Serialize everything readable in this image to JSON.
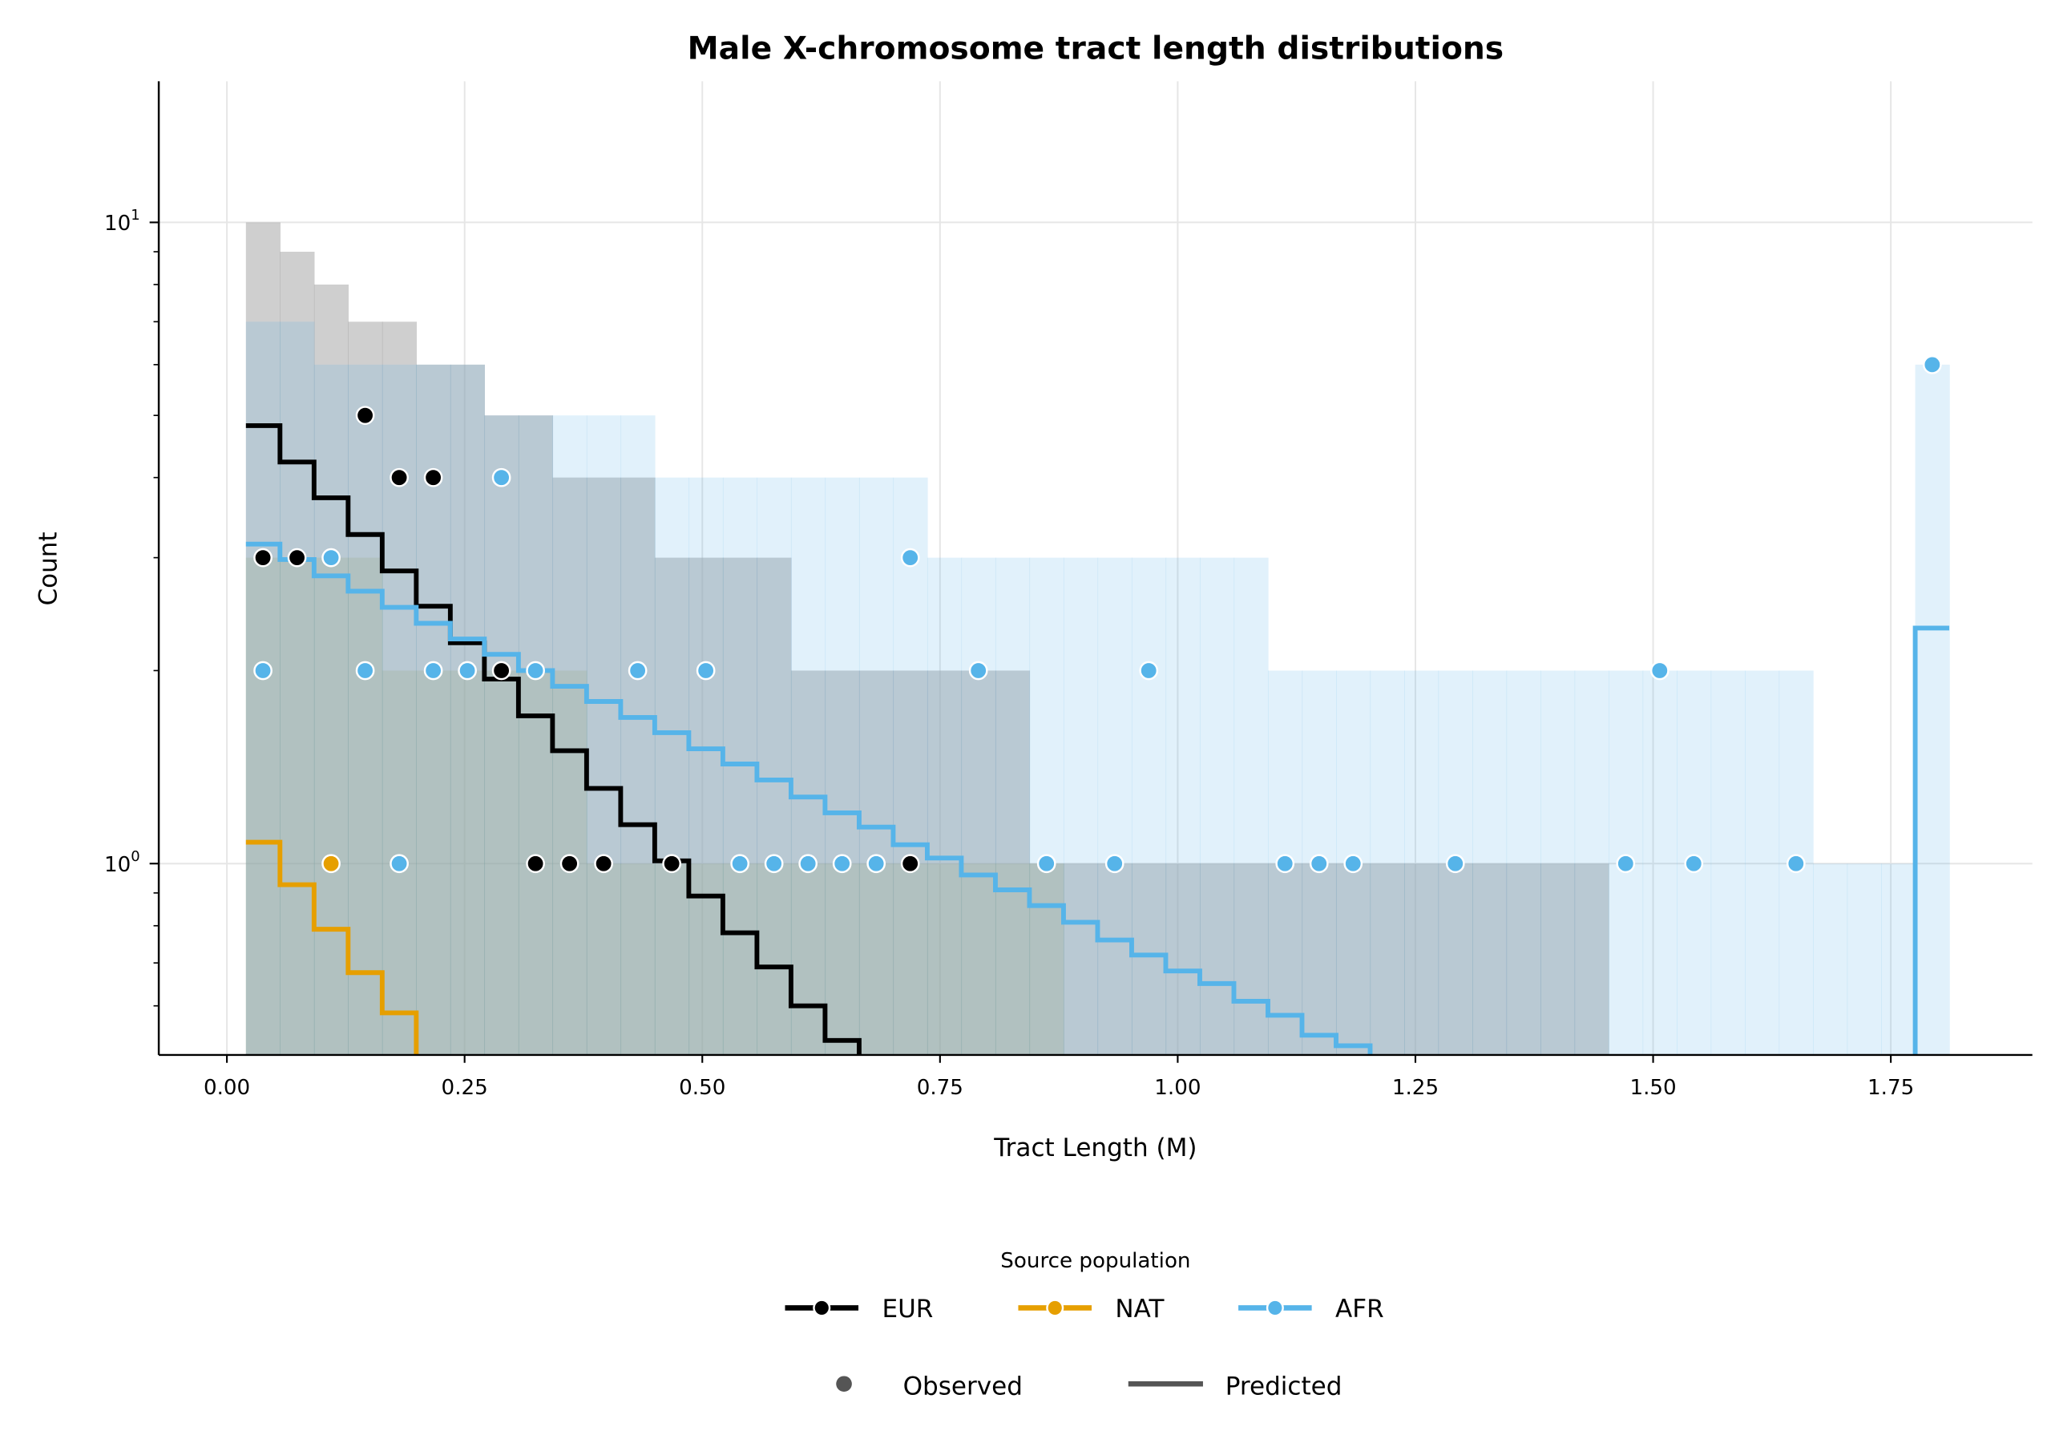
{
  "chart_data": {
    "type": "histogram-step-scatter",
    "title": "Male X-chromosome tract length distributions",
    "xlabel": "Tract Length (M)",
    "ylabel": "Count",
    "xlim": [
      -0.07,
      1.92
    ],
    "ylim": [
      0.503,
      16.6
    ],
    "yscale": "log",
    "grid": true,
    "xticks": [
      "0.00",
      "0.25",
      "0.50",
      "0.75",
      "1.00",
      "1.25",
      "1.50",
      "1.75"
    ],
    "xtick_values": [
      0,
      0.25,
      0.5,
      0.75,
      1.0,
      1.25,
      1.5,
      1.75
    ],
    "yticks": [
      {
        "base": "10",
        "exp": "0",
        "value": 1
      },
      {
        "base": "10",
        "exp": "1",
        "value": 10
      }
    ],
    "bins": {
      "start": 0.02,
      "width": 0.03583,
      "count": 50
    },
    "series": [
      {
        "name": "EUR",
        "color": "#000000",
        "hist_color": "#a0a0a0",
        "hist_opacity": 0.5,
        "histogram": [
          10,
          9,
          8,
          7,
          7,
          6,
          6,
          5,
          5,
          4,
          4,
          4,
          3,
          3,
          3,
          3,
          2,
          2,
          2,
          2,
          2,
          2,
          2,
          1,
          1,
          1,
          1,
          1,
          1,
          1,
          1,
          1,
          1,
          1,
          1,
          1,
          1,
          1,
          1,
          1,
          0,
          0,
          0,
          0,
          0,
          0,
          0,
          0,
          0,
          0
        ],
        "predicted": [
          4.82,
          4.23,
          3.72,
          3.26,
          2.86,
          2.52,
          2.21,
          1.94,
          1.7,
          1.5,
          1.31,
          1.15,
          1.01,
          0.89,
          0.78,
          0.69,
          0.6,
          0.53,
          0.47
        ],
        "observed": [
          [
            0,
            3
          ],
          [
            1,
            3
          ],
          [
            3,
            5
          ],
          [
            4,
            4
          ],
          [
            5,
            4
          ],
          [
            7,
            2
          ],
          [
            8,
            1
          ],
          [
            9,
            1
          ],
          [
            10,
            1
          ],
          [
            12,
            1
          ],
          [
            19,
            1
          ]
        ]
      },
      {
        "name": "NAT",
        "color": "#E69F00",
        "hist_color": "#9a9a50",
        "hist_opacity": 0.18,
        "histogram": [
          3,
          3,
          3,
          3,
          2,
          2,
          2,
          2,
          2,
          2,
          1,
          1,
          1,
          1,
          1,
          1,
          1,
          1,
          1,
          1,
          1,
          1,
          1,
          1,
          0,
          0,
          0,
          0,
          0,
          0,
          0,
          0,
          0,
          0,
          0,
          0,
          0,
          0,
          0,
          0,
          0,
          0,
          0,
          0,
          0,
          0,
          0,
          0,
          0,
          0
        ],
        "predicted": [
          1.08,
          0.927,
          0.79,
          0.676,
          0.585,
          0.48
        ],
        "observed": [
          [
            2,
            1
          ]
        ]
      },
      {
        "name": "AFR",
        "color": "#56B4E9",
        "hist_color": "#56B4E9",
        "hist_opacity": 0.18,
        "histogram": [
          7,
          7,
          6,
          6,
          6,
          6,
          6,
          5,
          5,
          5,
          5,
          5,
          4,
          4,
          4,
          4,
          4,
          4,
          4,
          4,
          3,
          3,
          3,
          3,
          3,
          3,
          3,
          3,
          3,
          3,
          2,
          2,
          2,
          2,
          2,
          2,
          2,
          2,
          2,
          2,
          2,
          2,
          2,
          2,
          2,
          2,
          1,
          1,
          1,
          6
        ],
        "predicted": [
          3.15,
          2.98,
          2.81,
          2.66,
          2.51,
          2.37,
          2.24,
          2.12,
          2.0,
          1.89,
          1.79,
          1.69,
          1.6,
          1.51,
          1.43,
          1.35,
          1.27,
          1.2,
          1.14,
          1.07,
          1.02,
          0.96,
          0.91,
          0.86,
          0.81,
          0.76,
          0.72,
          0.68,
          0.65,
          0.61,
          0.58,
          0.54,
          0.52,
          0.45,
          0.4,
          0.4,
          0.4,
          0.4,
          0.4,
          0.4,
          0.4,
          0.4,
          0.4,
          0.4,
          0.4,
          0.4,
          0.4,
          0.4,
          0.4,
          2.33
        ],
        "observed": [
          [
            0,
            2
          ],
          [
            2,
            3
          ],
          [
            3,
            2
          ],
          [
            4,
            1
          ],
          [
            5,
            2
          ],
          [
            6,
            2
          ],
          [
            7,
            4
          ],
          [
            8,
            2
          ],
          [
            11,
            2
          ],
          [
            13,
            2
          ],
          [
            14,
            1
          ],
          [
            15,
            1
          ],
          [
            16,
            1
          ],
          [
            17,
            1
          ],
          [
            18,
            1
          ],
          [
            19,
            3
          ],
          [
            21,
            2
          ],
          [
            23,
            1
          ],
          [
            25,
            1
          ],
          [
            26,
            2
          ],
          [
            30,
            1
          ],
          [
            31,
            1
          ],
          [
            32,
            1
          ],
          [
            35,
            1
          ],
          [
            40,
            1
          ],
          [
            41,
            2
          ],
          [
            42,
            1
          ],
          [
            45,
            1
          ],
          [
            49,
            6
          ]
        ]
      }
    ],
    "legend": {
      "title": "Source population",
      "placement": "bottom-center",
      "populations": [
        "EUR",
        "NAT",
        "AFR"
      ],
      "styles": [
        {
          "label": "Observed",
          "color": "#555555"
        },
        {
          "label": "Predicted",
          "color": "#555555"
        }
      ]
    }
  }
}
